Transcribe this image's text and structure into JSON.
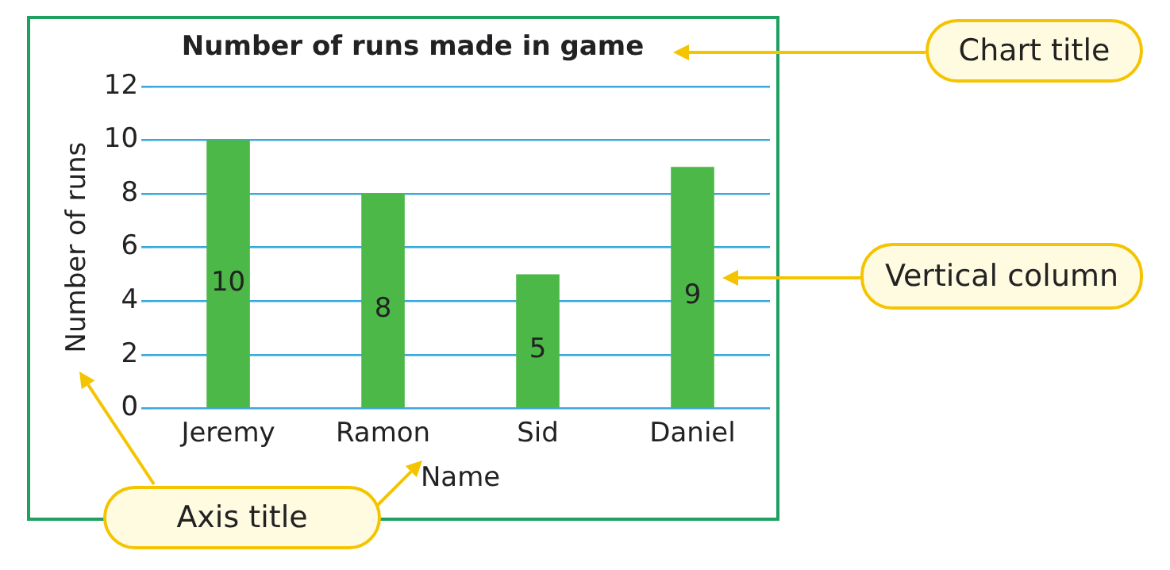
{
  "chart_data": {
    "type": "bar",
    "title": "Number of runs made in game",
    "xlabel": "Name",
    "ylabel": "Number of runs",
    "categories": [
      "Jeremy",
      "Ramon",
      "Sid",
      "Daniel"
    ],
    "values": [
      10,
      8,
      5,
      9
    ],
    "color": "#4cb848",
    "ylim": [
      0,
      12
    ],
    "yticks": [
      0,
      2,
      4,
      6,
      8,
      10,
      12
    ],
    "grid": "y",
    "data_labels": true,
    "legend": false,
    "annotations": [
      "Chart title",
      "Vertical column",
      "Axis title"
    ]
  }
}
